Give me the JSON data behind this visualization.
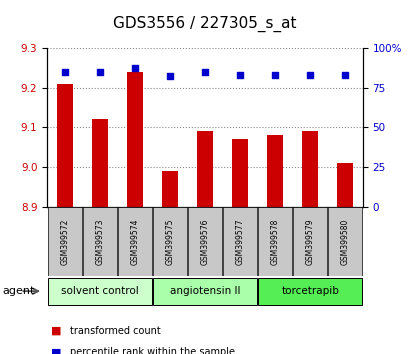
{
  "title": "GDS3556 / 227305_s_at",
  "samples": [
    "GSM399572",
    "GSM399573",
    "GSM399574",
    "GSM399575",
    "GSM399576",
    "GSM399577",
    "GSM399578",
    "GSM399579",
    "GSM399580"
  ],
  "transformed_counts": [
    9.21,
    9.12,
    9.24,
    8.99,
    9.09,
    9.07,
    9.08,
    9.09,
    9.01
  ],
  "percentile_ranks": [
    85,
    85,
    87,
    82,
    85,
    83,
    83,
    83,
    83
  ],
  "ylim_left": [
    8.9,
    9.3
  ],
  "ylim_right": [
    0,
    100
  ],
  "yticks_left": [
    8.9,
    9.0,
    9.1,
    9.2,
    9.3
  ],
  "yticks_right": [
    0,
    25,
    50,
    75,
    100
  ],
  "bar_color": "#cc0000",
  "dot_color": "#0000cc",
  "groups": [
    {
      "label": "solvent control",
      "indices": [
        0,
        1,
        2
      ],
      "color": "#ccffcc"
    },
    {
      "label": "angiotensin II",
      "indices": [
        3,
        4,
        5
      ],
      "color": "#aaffaa"
    },
    {
      "label": "torcetrapib",
      "indices": [
        6,
        7,
        8
      ],
      "color": "#55ee55"
    }
  ],
  "agent_label": "agent",
  "legend_bar_label": "transformed count",
  "legend_dot_label": "percentile rank within the sample",
  "grid_color": "#888888",
  "background_plot": "#ffffff",
  "background_sample_row": "#c8c8c8",
  "title_fontsize": 11
}
